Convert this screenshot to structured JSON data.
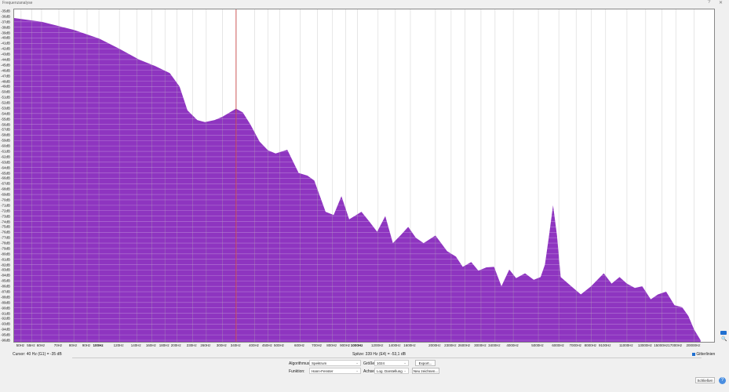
{
  "window": {
    "title": "Frequenzanalyse",
    "help_glyph": "?",
    "close_glyph": "✕"
  },
  "colors": {
    "spectrum": "#8e35c0",
    "peak_line": "#d04040",
    "grid": "#d6d6d6",
    "accent": "#1e6fd0"
  },
  "chart_data": {
    "type": "area",
    "x_scale": "log",
    "xlim": [
      47,
      23900
    ],
    "ylim": [
      -96,
      -35
    ],
    "grid": true,
    "y_ticks": [
      -35,
      -36,
      -37,
      -38,
      -39,
      -40,
      -41,
      -42,
      -43,
      -44,
      -45,
      -46,
      -47,
      -48,
      -49,
      -50,
      -51,
      -52,
      -53,
      -54,
      -55,
      -56,
      -57,
      -58,
      -59,
      -60,
      -61,
      -62,
      -63,
      -64,
      -65,
      -66,
      -67,
      -68,
      -69,
      -70,
      -71,
      -72,
      -73,
      -74,
      -75,
      -76,
      -77,
      -78,
      -79,
      -80,
      -81,
      -82,
      -83,
      -84,
      -85,
      -86,
      -87,
      -88,
      -89,
      -90,
      -91,
      -92,
      -93,
      -94,
      -95,
      -96
    ],
    "y_tick_suffix": "dB",
    "x_ticks": [
      50,
      55,
      60,
      70,
      80,
      90,
      100,
      120,
      140,
      160,
      180,
      200,
      230,
      260,
      300,
      340,
      400,
      450,
      500,
      600,
      700,
      800,
      900,
      1000,
      1200,
      1400,
      1600,
      2000,
      2300,
      2600,
      3000,
      3400,
      4000,
      5000,
      6000,
      7000,
      8000,
      9100,
      11000,
      13000,
      15000,
      17000,
      20000
    ],
    "x_tick_suffix": "Hz",
    "peak_marker_hz": 339,
    "points": [
      [
        47,
        -36.3
      ],
      [
        60,
        -37
      ],
      [
        80,
        -38.5
      ],
      [
        100,
        -40.1
      ],
      [
        120,
        -42
      ],
      [
        143,
        -44
      ],
      [
        165,
        -45.2
      ],
      [
        188,
        -46.5
      ],
      [
        205,
        -49
      ],
      [
        220,
        -53.4
      ],
      [
        240,
        -55.2
      ],
      [
        257,
        -55.6
      ],
      [
        280,
        -55.2
      ],
      [
        300,
        -54.6
      ],
      [
        339,
        -53.1
      ],
      [
        360,
        -53.8
      ],
      [
        385,
        -56
      ],
      [
        418,
        -59.2
      ],
      [
        450,
        -60.8
      ],
      [
        482,
        -61.4
      ],
      [
        535,
        -60.7
      ],
      [
        592,
        -65
      ],
      [
        640,
        -65.5
      ],
      [
        680,
        -66.4
      ],
      [
        752,
        -72.2
      ],
      [
        808,
        -72.8
      ],
      [
        866,
        -69.3
      ],
      [
        928,
        -73.6
      ],
      [
        1035,
        -72.2
      ],
      [
        1110,
        -74
      ],
      [
        1190,
        -75.9
      ],
      [
        1280,
        -73
      ],
      [
        1370,
        -78
      ],
      [
        1470,
        -76.5
      ],
      [
        1570,
        -75
      ],
      [
        1680,
        -77
      ],
      [
        1800,
        -78
      ],
      [
        2000,
        -76.6
      ],
      [
        2220,
        -79.5
      ],
      [
        2400,
        -80.5
      ],
      [
        2550,
        -82.4
      ],
      [
        2750,
        -81.5
      ],
      [
        2930,
        -83.1
      ],
      [
        3150,
        -82.5
      ],
      [
        3370,
        -82.4
      ],
      [
        3600,
        -86
      ],
      [
        3860,
        -82.9
      ],
      [
        4100,
        -84.5
      ],
      [
        4440,
        -83.6
      ],
      [
        4800,
        -84.8
      ],
      [
        5100,
        -84.3
      ],
      [
        5300,
        -82
      ],
      [
        5500,
        -76.6
      ],
      [
        5700,
        -71
      ],
      [
        5900,
        -76.6
      ],
      [
        6100,
        -84.3
      ],
      [
        6700,
        -86
      ],
      [
        7300,
        -87.5
      ],
      [
        8000,
        -86
      ],
      [
        8950,
        -83.6
      ],
      [
        9600,
        -85.5
      ],
      [
        10300,
        -84.3
      ],
      [
        11000,
        -85.5
      ],
      [
        11800,
        -86.3
      ],
      [
        12600,
        -86
      ],
      [
        13600,
        -88.4
      ],
      [
        14500,
        -87.5
      ],
      [
        15600,
        -87
      ],
      [
        16800,
        -89.5
      ],
      [
        18000,
        -89.9
      ],
      [
        19000,
        -91.5
      ],
      [
        20000,
        -94
      ],
      [
        21200,
        -96
      ]
    ]
  },
  "status": {
    "cursor": "Cursor: 40 Hz (G1) = -35 dB",
    "peak": "Spitze: 339 Hz (E4) = -53,1 dB"
  },
  "controls": {
    "algorithm_label": "Algorithmus:",
    "algorithm_value": "Spektrum",
    "function_label": "Funktion:",
    "function_value": "Hann-Fenster",
    "size_label": "Größe:",
    "size_value": "1024",
    "axis_label": "Achse:",
    "axis_value": "Log. Darstellung",
    "export_label": "Export...",
    "redraw_label": "Neu zeichnen...",
    "grid_label": "Gitterlinien",
    "grid_checked": true,
    "close_label": "Schließen",
    "help_label": "?"
  }
}
